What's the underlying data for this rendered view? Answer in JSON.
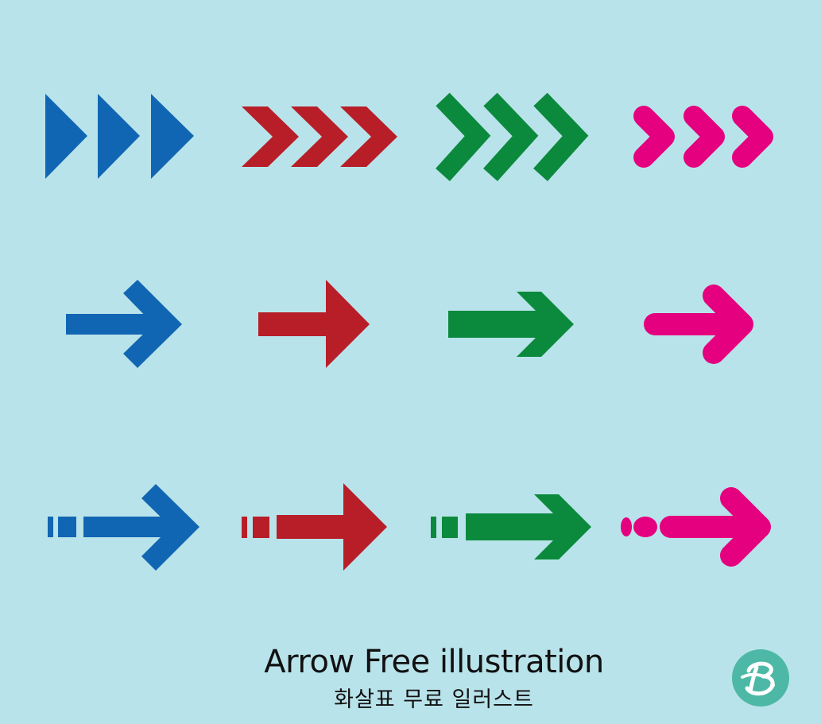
{
  "caption": {
    "title": "Arrow Free illustration",
    "subtitle": "화살표 무료 일러스트"
  },
  "colors": {
    "background": "#b9e3ea",
    "blue": "#1166b3",
    "red": "#b81e28",
    "green": "#0b8a3d",
    "pink": "#e5007f",
    "logo": "#4db8a5"
  },
  "rows": [
    {
      "name": "triple-chevron-row",
      "items": [
        {
          "icon": "triangles-icon",
          "color": "blue"
        },
        {
          "icon": "flat-chevrons-icon",
          "color": "red"
        },
        {
          "icon": "thick-chevrons-icon",
          "color": "green"
        },
        {
          "icon": "rounded-chevrons-icon",
          "color": "pink"
        }
      ]
    },
    {
      "name": "arrow-row",
      "items": [
        {
          "icon": "line-arrow-icon",
          "color": "blue"
        },
        {
          "icon": "block-arrow-icon",
          "color": "red"
        },
        {
          "icon": "wide-arrow-icon",
          "color": "green"
        },
        {
          "icon": "rounded-arrow-icon",
          "color": "pink"
        }
      ]
    },
    {
      "name": "dashed-arrow-row",
      "items": [
        {
          "icon": "dashed-line-arrow-icon",
          "color": "blue"
        },
        {
          "icon": "dashed-block-arrow-icon",
          "color": "red"
        },
        {
          "icon": "dashed-wide-arrow-icon",
          "color": "green"
        },
        {
          "icon": "dotted-rounded-arrow-icon",
          "color": "pink"
        }
      ]
    }
  ],
  "logo": {
    "icon": "b-logo-icon"
  }
}
